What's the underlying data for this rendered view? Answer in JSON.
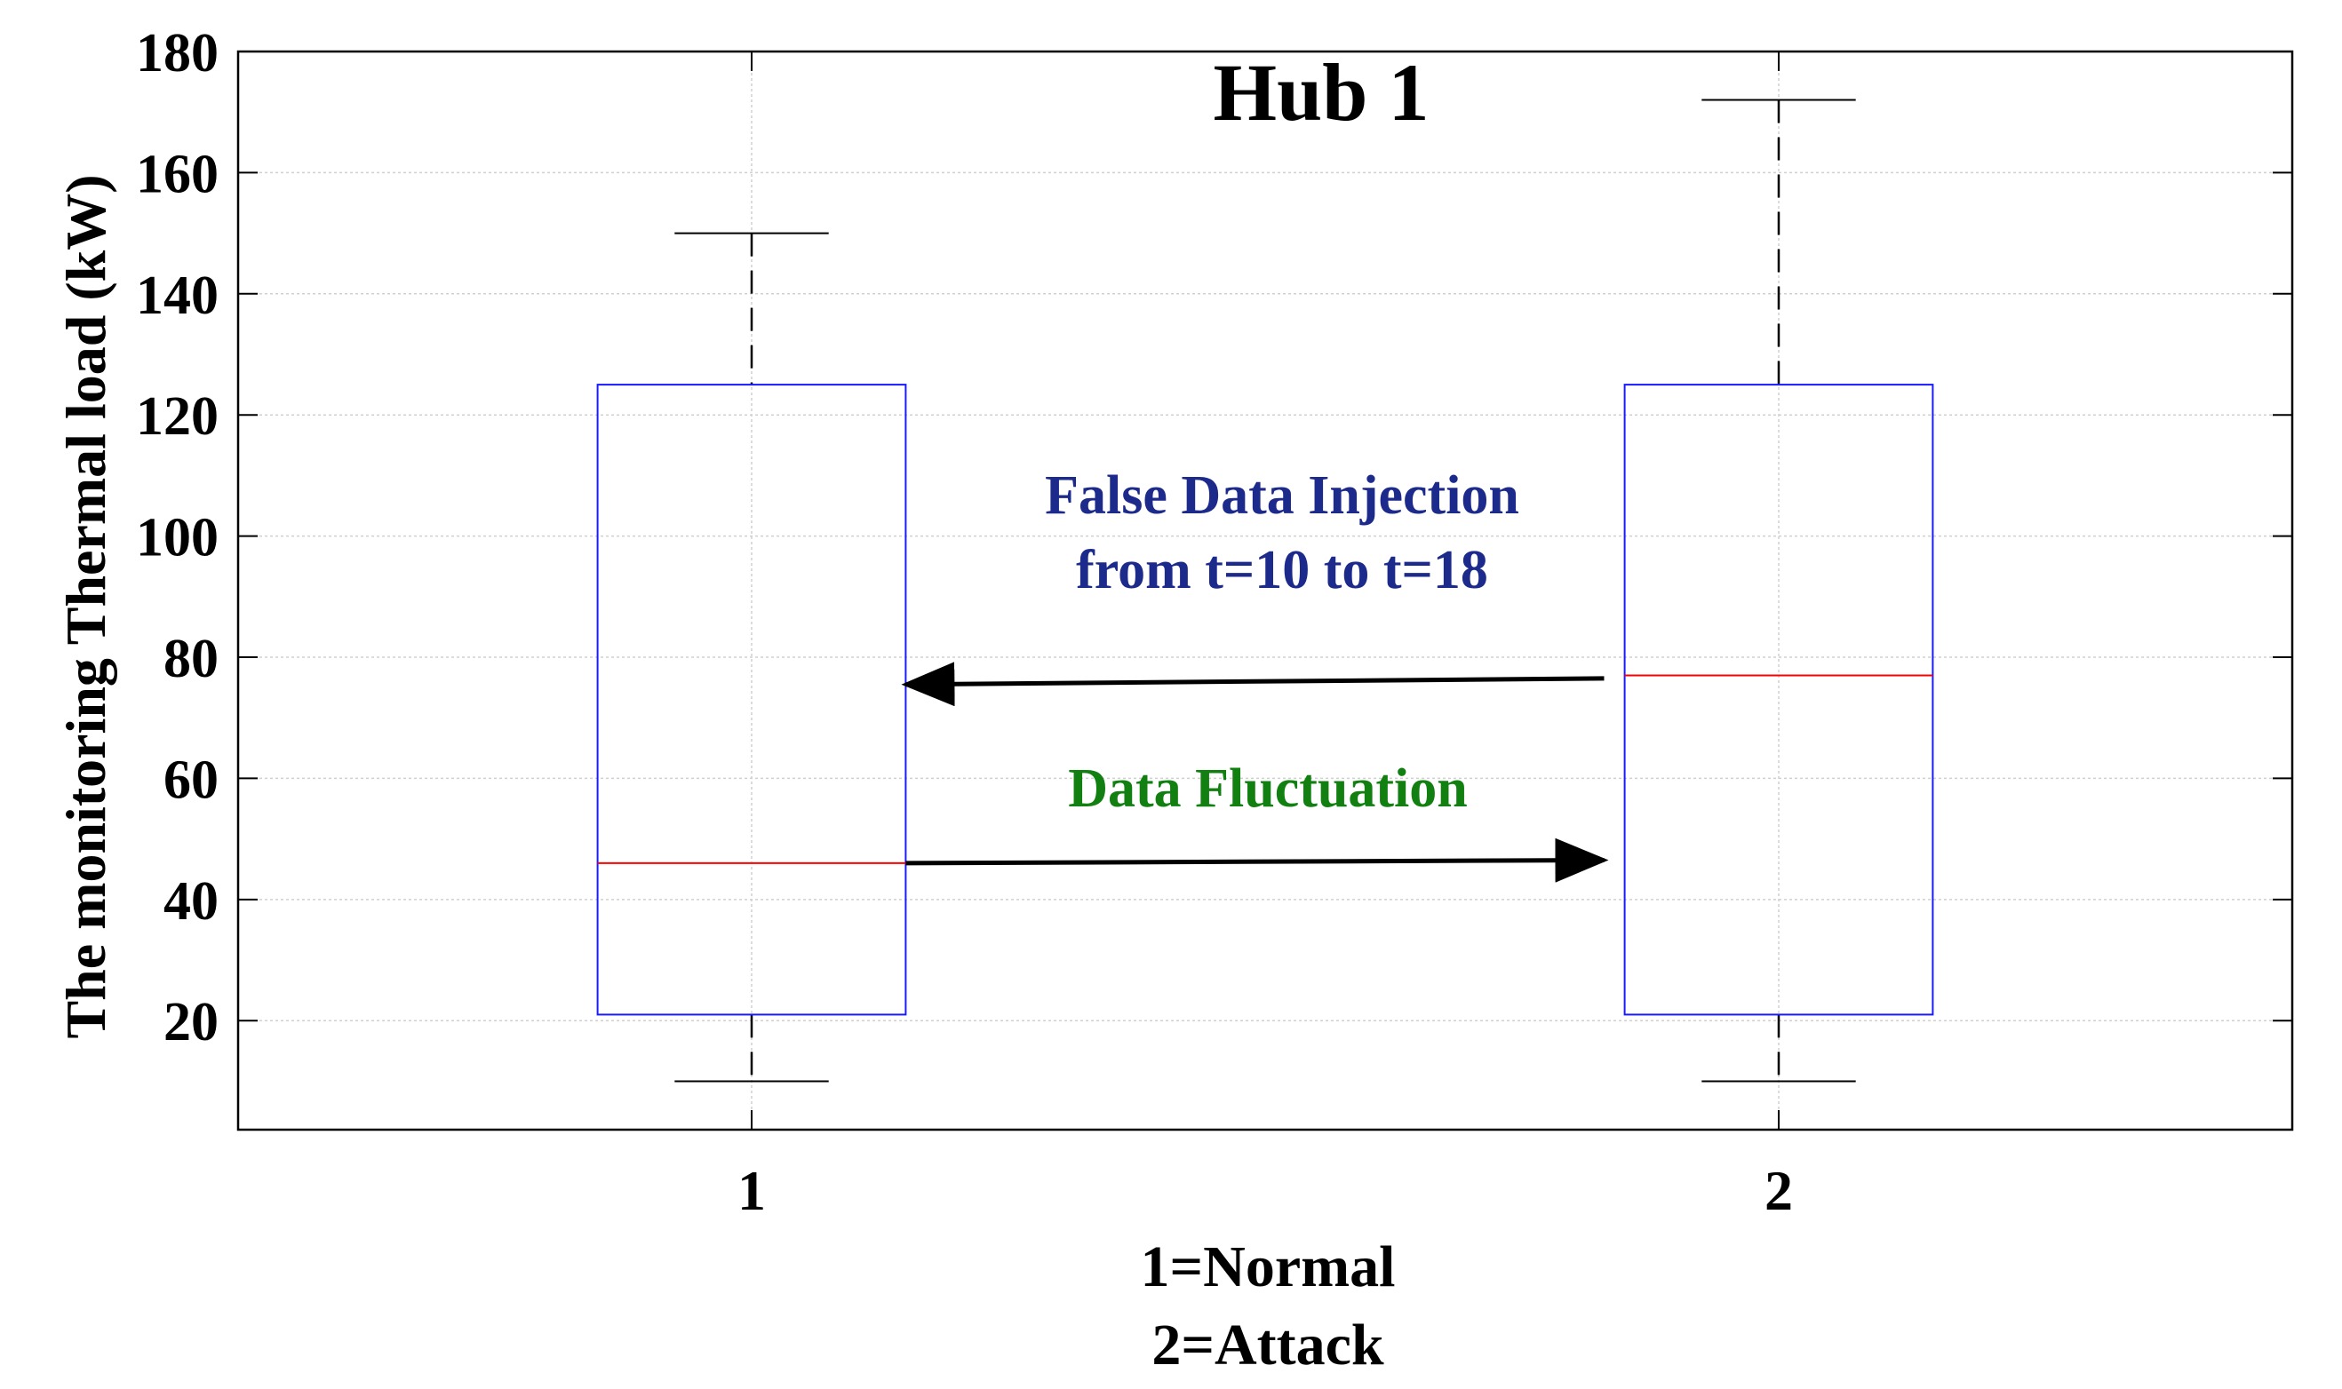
{
  "chart_data": {
    "type": "box",
    "title": "Hub 1",
    "ylabel": "The monitoring Thermal load (kW)",
    "xlabel_lines": [
      "1=Normal",
      "2=Attack"
    ],
    "ylim": [
      2,
      180
    ],
    "xlim": [
      0.5,
      2.5
    ],
    "yticks": [
      20,
      40,
      60,
      80,
      100,
      120,
      140,
      160,
      180
    ],
    "categories": [
      "1",
      "2"
    ],
    "grid": true,
    "boxes": [
      {
        "x": 1,
        "q1": 21,
        "median": 46,
        "q3": 125,
        "whisker_low": 10,
        "whisker_high": 150
      },
      {
        "x": 2,
        "q1": 21,
        "median": 77,
        "q3": 125,
        "whisker_low": 10,
        "whisker_high": 172
      }
    ],
    "annotations": [
      {
        "text_lines": [
          "False Data Injection",
          "from t=10 to t=18"
        ],
        "color": "#1c2a8c",
        "arrow": {
          "from": [
            1.83,
            76.5
          ],
          "to": [
            1.15,
            75.5
          ]
        }
      },
      {
        "text_lines": [
          "Data Fluctuation"
        ],
        "color": "#118011",
        "arrow": {
          "from": [
            1.15,
            46
          ],
          "to": [
            1.83,
            46.5
          ]
        }
      }
    ],
    "colors": {
      "box": "#1a1aff",
      "median": "#ff0000",
      "whisker": "#000000",
      "grid": "#d0d0d0"
    }
  }
}
